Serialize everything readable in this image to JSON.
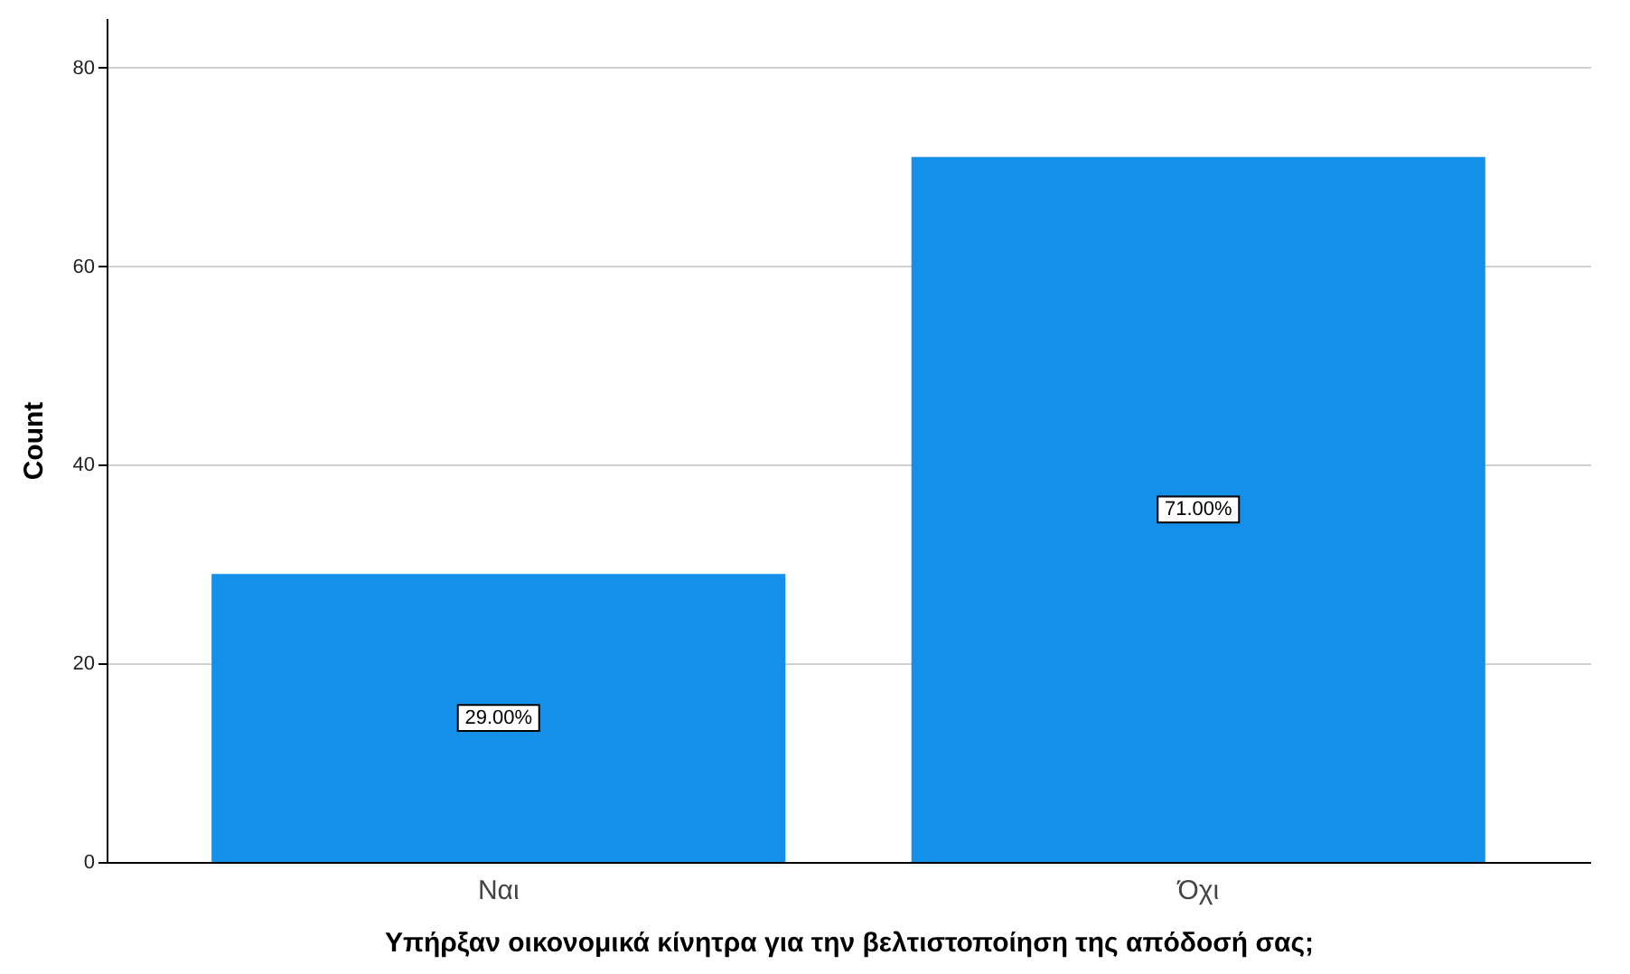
{
  "chart_data": {
    "type": "bar",
    "xlabel": "Υπήρξαν οικονομικά κίνητρα για την βελτιστοποίηση της απόδοσή σας;",
    "ylabel": "Count",
    "categories": [
      "Ναι",
      "Όχι"
    ],
    "values": [
      29,
      71
    ],
    "value_labels": [
      "29.00%",
      "71.00%"
    ],
    "color": "#1590e8",
    "ylim": [
      0,
      85
    ],
    "yticks": [
      0,
      20,
      40,
      60,
      80
    ],
    "grid": "y"
  }
}
